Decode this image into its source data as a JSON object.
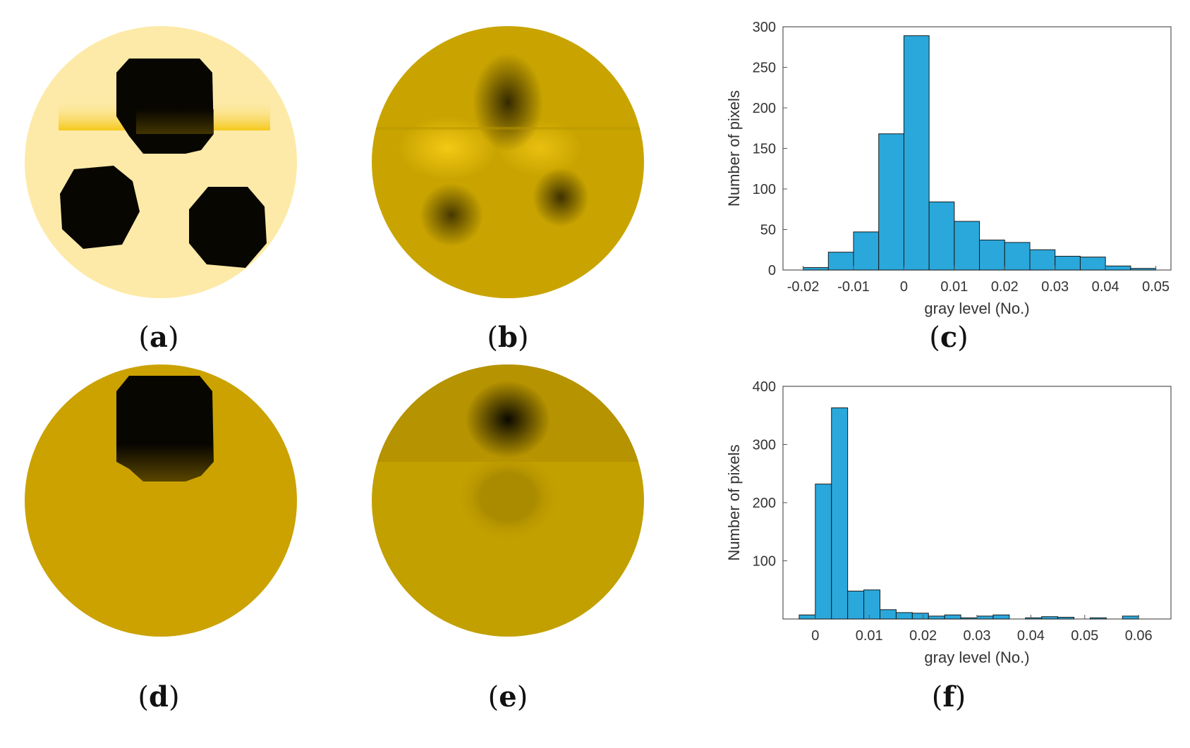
{
  "captions": {
    "a": "a",
    "b": "b",
    "c": "c",
    "d": "d",
    "e": "e",
    "f": "f"
  },
  "colors": {
    "bar": "#2aa8dc",
    "bar_edge": "#1a1a1a",
    "phantom_a_bg": "#fdeaa8",
    "phantom_d_bg": "#cba200",
    "recon_gold": "#c9a400",
    "inclusion": "#080600"
  },
  "chart_data": [
    {
      "id": "c",
      "type": "bar",
      "xlabel": "gray level (No.)",
      "ylabel": "Number of pixels",
      "xlim": [
        -0.024,
        0.053
      ],
      "ylim": [
        0,
        300
      ],
      "xticks": [
        -0.02,
        -0.01,
        0,
        0.01,
        0.02,
        0.03,
        0.04,
        0.05
      ],
      "xtick_labels": [
        "-0.02",
        "-0.01",
        "0",
        "0.01",
        "0.02",
        "0.03",
        "0.04",
        "0.05"
      ],
      "yticks": [
        0,
        50,
        100,
        150,
        200,
        250,
        300
      ],
      "ytick_labels": [
        "0",
        "50",
        "100",
        "150",
        "200",
        "250",
        "300"
      ],
      "bin_width": 0.005,
      "bin_lefts": [
        -0.02,
        -0.015,
        -0.01,
        -0.005,
        0,
        0.005,
        0.01,
        0.015,
        0.02,
        0.025,
        0.03,
        0.035,
        0.04,
        0.045
      ],
      "values": [
        3,
        22,
        47,
        168,
        289,
        84,
        60,
        37,
        34,
        25,
        17,
        16,
        5,
        2
      ]
    },
    {
      "id": "f",
      "type": "bar",
      "xlabel": "gray level (No.)",
      "ylabel": "Number of pixels",
      "xlim": [
        -0.006,
        0.066
      ],
      "ylim": [
        0,
        400
      ],
      "xticks": [
        0,
        0.01,
        0.02,
        0.03,
        0.04,
        0.05,
        0.06
      ],
      "xtick_labels": [
        "0",
        "0.01",
        "0.02",
        "0.03",
        "0.04",
        "0.05",
        "0.06"
      ],
      "yticks": [
        100,
        200,
        300,
        400
      ],
      "ytick_labels": [
        "100",
        "200",
        "300",
        "400"
      ],
      "bin_width": 0.003,
      "bin_lefts": [
        -0.003,
        0,
        0.003,
        0.006,
        0.009,
        0.012,
        0.015,
        0.018,
        0.021,
        0.024,
        0.027,
        0.03,
        0.033,
        0.036,
        0.039,
        0.042,
        0.045,
        0.048,
        0.051,
        0.054,
        0.057
      ],
      "values": [
        7,
        232,
        363,
        48,
        50,
        16,
        11,
        10,
        5,
        7,
        2,
        5,
        7,
        0,
        2,
        4,
        3,
        0,
        2,
        0,
        5
      ]
    }
  ]
}
